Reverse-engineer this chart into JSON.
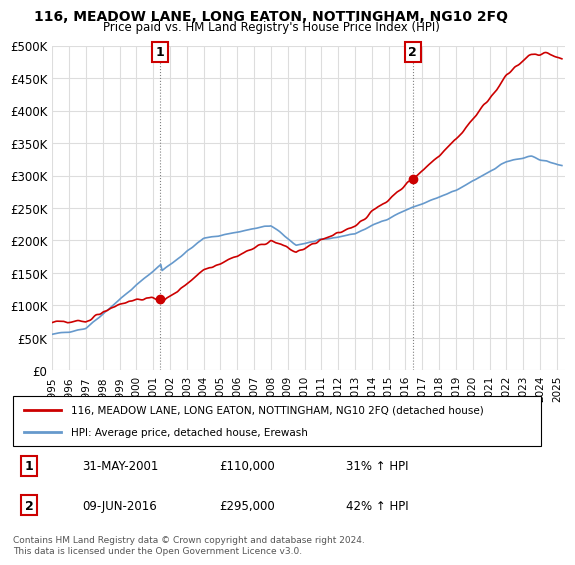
{
  "title": "116, MEADOW LANE, LONG EATON, NOTTINGHAM, NG10 2FQ",
  "subtitle": "Price paid vs. HM Land Registry's House Price Index (HPI)",
  "ylabel_ticks": [
    "£0",
    "£50K",
    "£100K",
    "£150K",
    "£200K",
    "£250K",
    "£300K",
    "£350K",
    "£400K",
    "£450K",
    "£500K"
  ],
  "ytick_values": [
    0,
    50000,
    100000,
    150000,
    200000,
    250000,
    300000,
    350000,
    400000,
    450000,
    500000
  ],
  "xlim_start": 1995.0,
  "xlim_end": 2025.5,
  "ylim": [
    0,
    500000
  ],
  "sale1_x": 2001.42,
  "sale1_y": 110000,
  "sale1_label": "1",
  "sale2_x": 2016.44,
  "sale2_y": 295000,
  "sale2_label": "2",
  "hpi_color": "#6699cc",
  "property_color": "#cc0000",
  "legend_property": "116, MEADOW LANE, LONG EATON, NOTTINGHAM, NG10 2FQ (detached house)",
  "legend_hpi": "HPI: Average price, detached house, Erewash",
  "table_rows": [
    [
      "1",
      "31-MAY-2001",
      "£110,000",
      "31% ↑ HPI"
    ],
    [
      "2",
      "09-JUN-2016",
      "£295,000",
      "42% ↑ HPI"
    ]
  ],
  "footnote": "Contains HM Land Registry data © Crown copyright and database right 2024.\nThis data is licensed under the Open Government Licence v3.0.",
  "background_color": "#ffffff",
  "grid_color": "#dddddd"
}
